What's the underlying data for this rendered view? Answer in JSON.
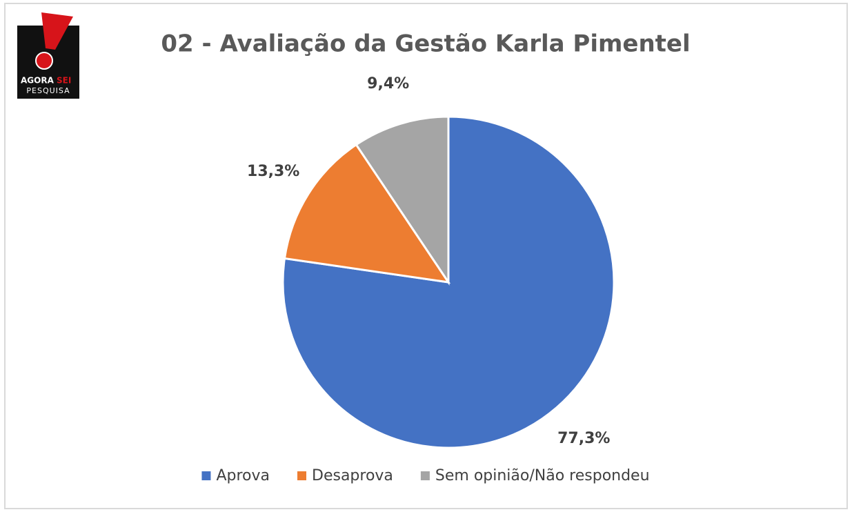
{
  "chart_data": {
    "type": "pie",
    "title": "02 - Avaliação da Gestão Karla Pimentel",
    "categories": [
      "Aprova",
      "Desaprova",
      "Sem opinião/Não respondeu"
    ],
    "values": [
      77.3,
      13.3,
      9.4
    ],
    "value_labels": [
      "77,3%",
      "13,3%",
      "9,4%"
    ],
    "colors": [
      "#4472c4",
      "#ed7d31",
      "#a5a5a5"
    ],
    "legend": "bottom",
    "logo": {
      "brand": "AGORA",
      "brand_accent": "SEI",
      "subtitle": "PESQUISA"
    }
  }
}
